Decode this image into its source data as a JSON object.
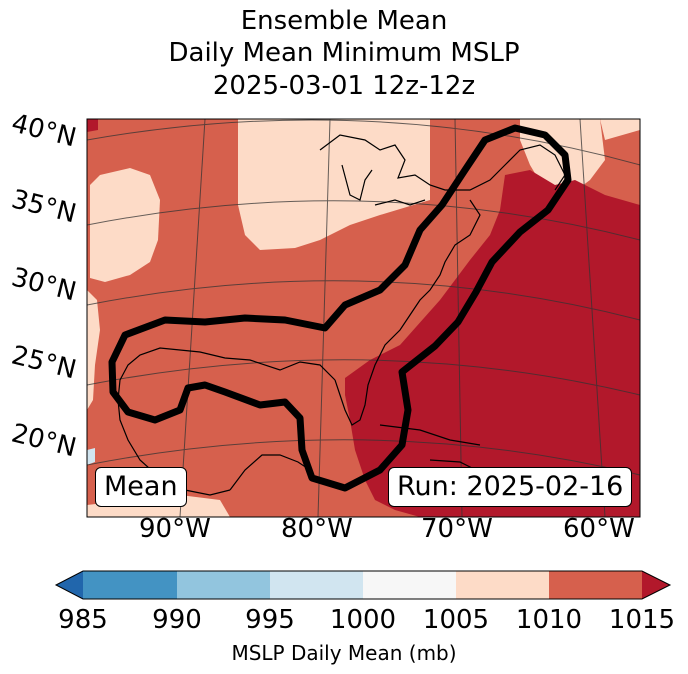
{
  "title": {
    "line1": "Ensemble Mean",
    "line2": "Daily Mean Minimum MSLP",
    "line3": "2025-03-01 12z-12z"
  },
  "map": {
    "lat_labels": [
      "40°N",
      "35°N",
      "30°N",
      "25°N",
      "20°N"
    ],
    "lon_labels": [
      "90°W",
      "80°W",
      "70°W",
      "60°W"
    ],
    "mean_label": "Mean",
    "run_label": "Run: 2025-02-16"
  },
  "colorbar": {
    "label": "MSLP Daily Mean (mb)",
    "ticks": [
      "985",
      "990",
      "995",
      "1000",
      "1005",
      "1010",
      "1015"
    ],
    "colors": [
      "#2166ac",
      "#4393c3",
      "#92c5de",
      "#d1e5f0",
      "#f7f7f7",
      "#fddbc7",
      "#d6604d",
      "#b2182b"
    ]
  }
}
